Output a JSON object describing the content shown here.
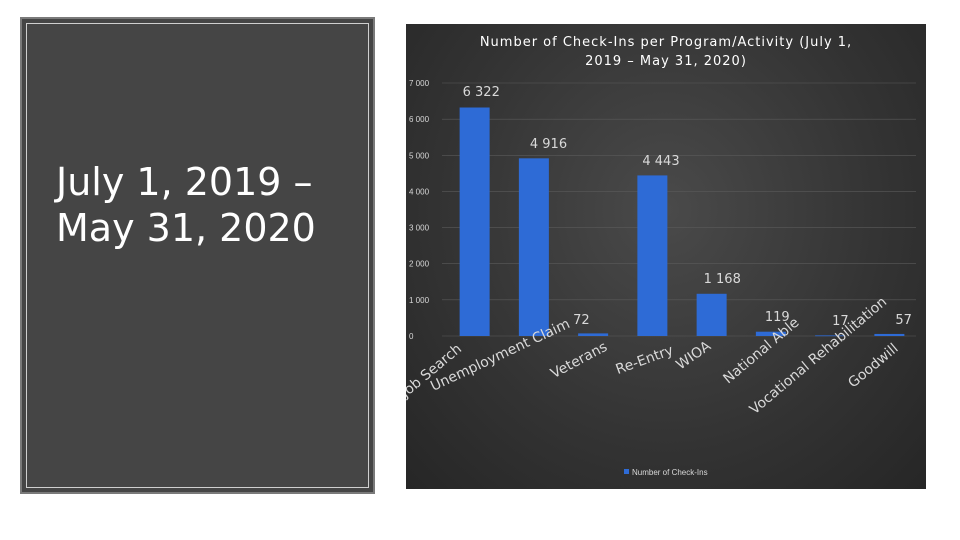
{
  "slide": {
    "heading_line1": "July 1, 2019 –",
    "heading_line2": "May 31, 2020"
  },
  "colors": {
    "bar": "#2e6bd6",
    "panel": "#454545"
  },
  "chart_data": {
    "type": "bar",
    "title_line1": "Number of Check-Ins per Program/Activity (July 1,",
    "title_line2": "2019 – May 31, 2020)",
    "categories": [
      "Job Search",
      "Unemployment Claim",
      "Veterans",
      "Re-Entry",
      "WIOA",
      "National Able",
      "Vocational Rehabilitation",
      "Goodwill"
    ],
    "series": [
      {
        "name": "Number of Check-Ins",
        "values": [
          6322,
          4916,
          72,
          4443,
          1168,
          119,
          17,
          57
        ],
        "labels": [
          "6 322",
          "4 916",
          "72",
          "4 443",
          "1 168",
          "119",
          "17",
          "57"
        ]
      }
    ],
    "ylim": [
      0,
      7000
    ],
    "yticks": [
      0,
      1000,
      2000,
      3000,
      4000,
      5000,
      6000,
      7000
    ],
    "ytick_labels": [
      "0",
      "1 000",
      "2 000",
      "3 000",
      "4 000",
      "5 000",
      "6 000",
      "7 000"
    ],
    "grid": true,
    "legend_position": "bottom"
  }
}
